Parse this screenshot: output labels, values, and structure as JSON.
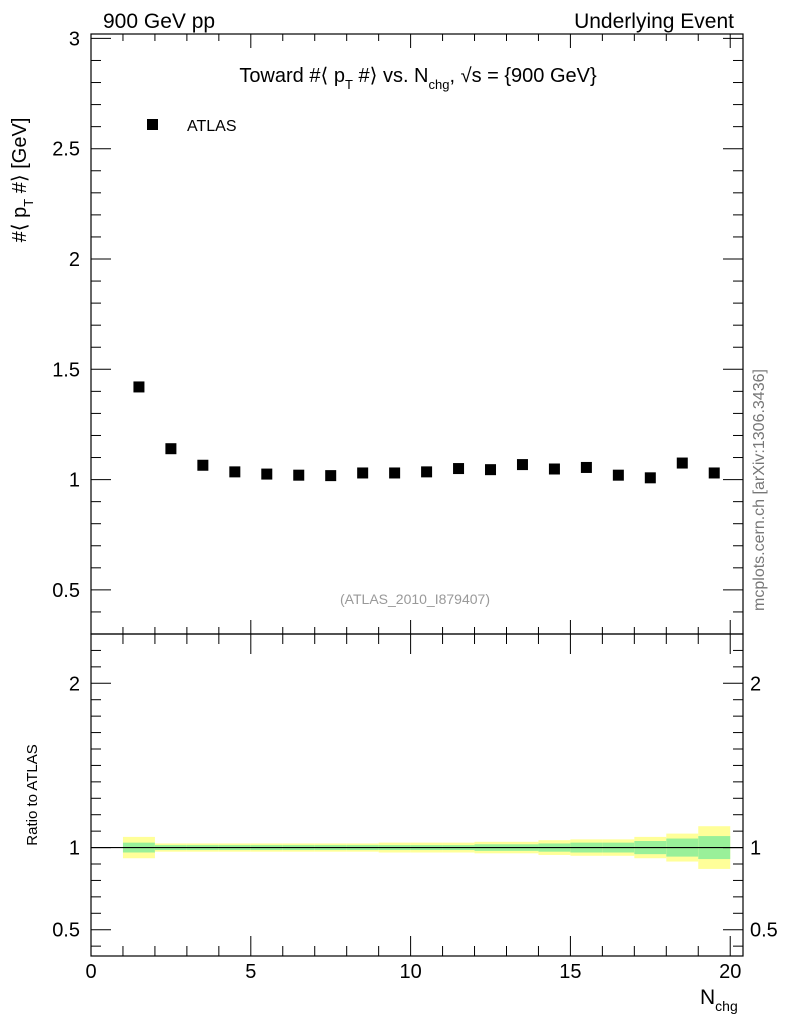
{
  "header": {
    "left": "900 GeV pp",
    "right": "Underlying Event"
  },
  "side_label": "mcplots.cern.ch [arXiv:1306.3436]",
  "chart_data": [
    {
      "type": "scatter",
      "title": "Toward #⟨ p_T #⟩ vs. N_chg, √s = {900 GeV}",
      "title_parts": {
        "main": "Toward #⟨ p",
        "sub_T": "T",
        "mid": " #⟩ vs. N",
        "sub_chg": "chg",
        "tail": ", √s = {900 GeV}"
      },
      "ylabel_parts": {
        "main": "#⟨ p",
        "sub_T": "T",
        "tail": " #⟩ [GeV]"
      },
      "ylim": [
        0.3,
        3.02
      ],
      "yticks": [
        0.5,
        1,
        1.5,
        2,
        2.5,
        3
      ],
      "ytick_labels": [
        "0.5",
        "1",
        "1.5",
        "2",
        "2.5",
        "3"
      ],
      "legend": {
        "label": "ATLAS",
        "placement": "top-left"
      },
      "watermark": "(ATLAS_2010_I879407)",
      "series": [
        {
          "name": "ATLAS",
          "x": [
            1.5,
            2.5,
            3.5,
            4.5,
            5.5,
            6.5,
            7.5,
            8.5,
            9.5,
            10.5,
            11.5,
            12.5,
            13.5,
            14.5,
            15.5,
            16.5,
            17.5,
            18.5,
            19.5
          ],
          "y": [
            1.42,
            1.14,
            1.065,
            1.035,
            1.025,
            1.02,
            1.018,
            1.03,
            1.03,
            1.035,
            1.05,
            1.045,
            1.068,
            1.048,
            1.055,
            1.02,
            1.008,
            1.075,
            1.03
          ]
        }
      ]
    },
    {
      "type": "area",
      "ylabel": "Ratio to ATLAS",
      "ylim": [
        0.34,
        2.3
      ],
      "yticks": [
        0.5,
        1,
        2
      ],
      "ytick_labels": [
        "0.5",
        "1",
        "2"
      ],
      "xlim": [
        0,
        20.4
      ],
      "xticks": [
        0,
        5,
        10,
        15,
        20
      ],
      "xtick_labels": [
        "0",
        "5",
        "10",
        "15",
        "20"
      ],
      "xlabel_parts": {
        "main": "N",
        "sub": "chg"
      },
      "bands": {
        "x_edges": [
          1,
          2,
          3,
          4,
          5,
          6,
          7,
          8,
          9,
          10,
          11,
          12,
          13,
          14,
          15,
          16,
          17,
          18,
          19,
          20
        ],
        "yellow_half": [
          0.065,
          0.025,
          0.025,
          0.025,
          0.025,
          0.025,
          0.025,
          0.025,
          0.03,
          0.03,
          0.03,
          0.035,
          0.035,
          0.045,
          0.05,
          0.05,
          0.065,
          0.085,
          0.13
        ],
        "green_half": [
          0.03,
          0.015,
          0.015,
          0.015,
          0.015,
          0.015,
          0.015,
          0.015,
          0.015,
          0.015,
          0.015,
          0.02,
          0.02,
          0.025,
          0.03,
          0.03,
          0.04,
          0.055,
          0.07
        ]
      }
    }
  ],
  "colors": {
    "marker": "#000000",
    "yellow_band": "#ffff99",
    "green_band": "#99f099",
    "watermark": "#999999",
    "side_label": "#777777"
  }
}
